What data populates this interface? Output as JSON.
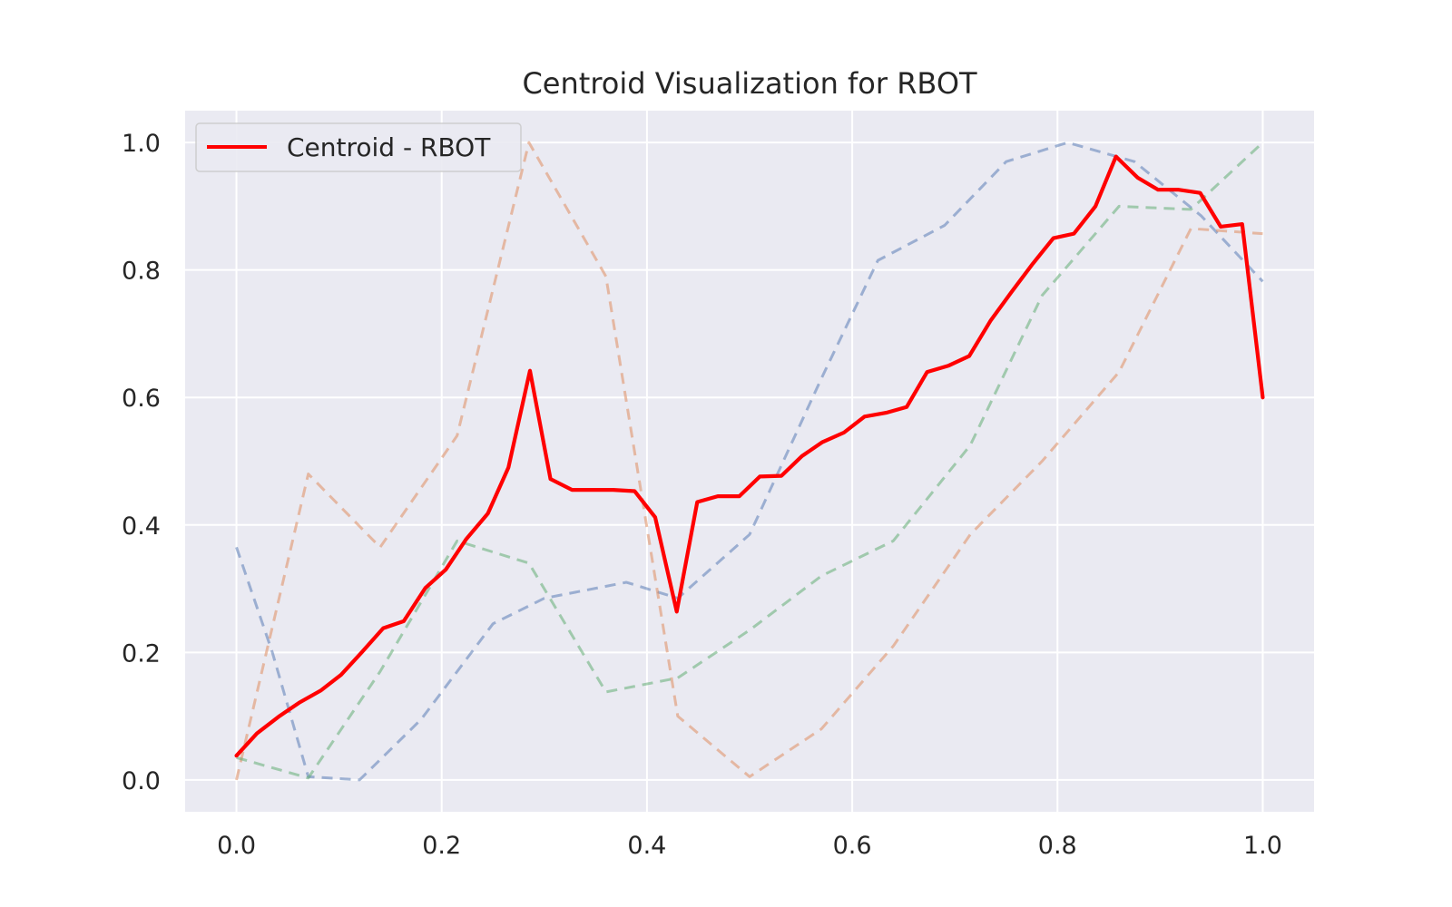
{
  "chart_data": {
    "type": "line",
    "title": "Centroid Visualization for RBOT",
    "xlabel": "",
    "ylabel": "",
    "xlim": [
      -0.05,
      1.05
    ],
    "ylim": [
      -0.05,
      1.05
    ],
    "xticks": [
      "0.0",
      "0.2",
      "0.4",
      "0.6",
      "0.8",
      "1.0"
    ],
    "yticks": [
      "0.0",
      "0.2",
      "0.4",
      "0.6",
      "0.8",
      "1.0"
    ],
    "grid": true,
    "legend_position": "top-left",
    "series": [
      {
        "name": "Centroid - RBOT",
        "color": "#ff0000",
        "style": "solid",
        "x": [
          0.0,
          0.02,
          0.041,
          0.061,
          0.082,
          0.102,
          0.122,
          0.143,
          0.163,
          0.184,
          0.204,
          0.224,
          0.245,
          0.265,
          0.286,
          0.306,
          0.327,
          0.347,
          0.367,
          0.388,
          0.408,
          0.429,
          0.449,
          0.469,
          0.49,
          0.51,
          0.531,
          0.551,
          0.571,
          0.592,
          0.612,
          0.633,
          0.653,
          0.673,
          0.694,
          0.714,
          0.735,
          0.755,
          0.776,
          0.796,
          0.816,
          0.837,
          0.857,
          0.878,
          0.898,
          0.918,
          0.939,
          0.959,
          0.98,
          1.0
        ],
        "values": [
          0.038,
          0.073,
          0.099,
          0.121,
          0.14,
          0.165,
          0.2,
          0.238,
          0.249,
          0.301,
          0.33,
          0.378,
          0.418,
          0.49,
          0.642,
          0.472,
          0.455,
          0.455,
          0.455,
          0.453,
          0.412,
          0.264,
          0.436,
          0.445,
          0.445,
          0.476,
          0.477,
          0.508,
          0.53,
          0.545,
          0.57,
          0.576,
          0.585,
          0.64,
          0.65,
          0.665,
          0.721,
          0.765,
          0.81,
          0.85,
          0.857,
          0.9,
          0.978,
          0.945,
          0.926,
          0.926,
          0.921,
          0.868,
          0.872,
          0.6
        ]
      },
      {
        "color": "#4c72b0",
        "style": "dashed",
        "x": [
          0.0,
          0.035,
          0.07,
          0.12,
          0.18,
          0.25,
          0.3,
          0.38,
          0.43,
          0.5,
          0.57,
          0.625,
          0.69,
          0.75,
          0.81,
          0.875,
          0.94,
          1.0
        ],
        "values": [
          0.365,
          0.2,
          0.005,
          0.0,
          0.095,
          0.245,
          0.285,
          0.31,
          0.285,
          0.385,
          0.63,
          0.815,
          0.87,
          0.97,
          1.0,
          0.97,
          0.885,
          0.782
        ]
      },
      {
        "color": "#dd8452",
        "style": "dashed",
        "x": [
          0.0,
          0.07,
          0.14,
          0.215,
          0.285,
          0.36,
          0.43,
          0.5,
          0.57,
          0.64,
          0.715,
          0.785,
          0.86,
          0.93,
          1.0
        ],
        "values": [
          0.0,
          0.48,
          0.365,
          0.54,
          1.0,
          0.79,
          0.1,
          0.005,
          0.08,
          0.21,
          0.385,
          0.5,
          0.64,
          0.865,
          0.857
        ]
      },
      {
        "color": "#55a868",
        "style": "dashed",
        "x": [
          0.0,
          0.07,
          0.14,
          0.215,
          0.285,
          0.36,
          0.43,
          0.5,
          0.57,
          0.64,
          0.715,
          0.785,
          0.86,
          0.93,
          1.0
        ],
        "values": [
          0.035,
          0.003,
          0.17,
          0.375,
          0.34,
          0.138,
          0.16,
          0.235,
          0.32,
          0.375,
          0.525,
          0.76,
          0.9,
          0.895,
          1.0
        ]
      }
    ]
  }
}
